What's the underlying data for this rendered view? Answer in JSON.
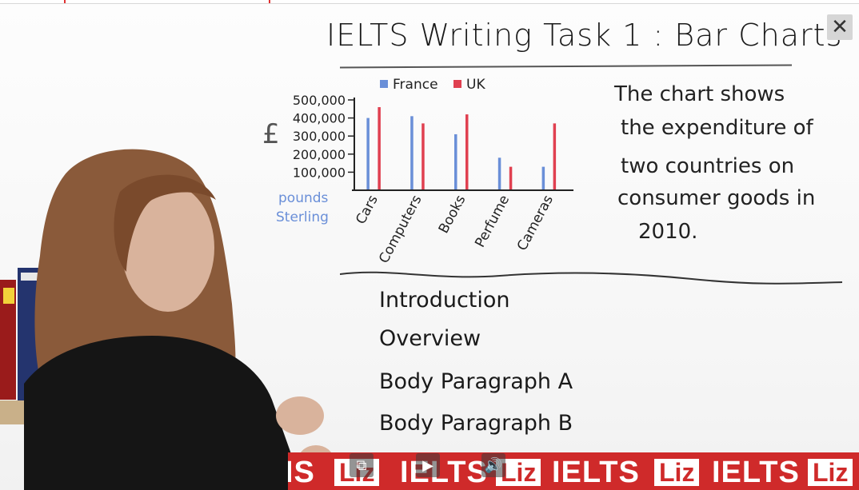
{
  "board": {
    "title": "IELTS Writing Task 1 : Bar Charts",
    "description_lines": [
      "The chart shows",
      "the expenditure of",
      "two countries on",
      "consumer goods in",
      "2010."
    ],
    "sections": [
      "Introduction",
      "Overview",
      "Body Paragraph A",
      "Body Paragraph B"
    ],
    "currency_symbol": "£",
    "unit_note": [
      "pounds",
      "Sterling"
    ]
  },
  "chart_data": {
    "type": "bar",
    "categories": [
      "Cars",
      "Computers",
      "Books",
      "Perfume",
      "Cameras"
    ],
    "series": [
      {
        "name": "France",
        "values": [
          400000,
          410000,
          310000,
          180000,
          130000
        ],
        "color": "#6a8fd8"
      },
      {
        "name": "UK",
        "values": [
          460000,
          370000,
          420000,
          130000,
          370000
        ],
        "color": "#e04050"
      }
    ],
    "yticks": [
      "500,000",
      "400,000",
      "300,000",
      "200,000",
      "100,000"
    ],
    "ylim": [
      0,
      500000
    ],
    "legend_position": "top"
  },
  "banner": {
    "texts": [
      "IS",
      "Liz",
      "IELTS",
      "Liz",
      "IELTS",
      "Liz",
      "IELTS",
      "Liz"
    ],
    "color": "#cf2a2a"
  },
  "controls": {
    "close_glyph": "✕",
    "play_glyph": "▶",
    "volume_glyph": "🔊",
    "miniplayer_glyph": "⧉"
  }
}
